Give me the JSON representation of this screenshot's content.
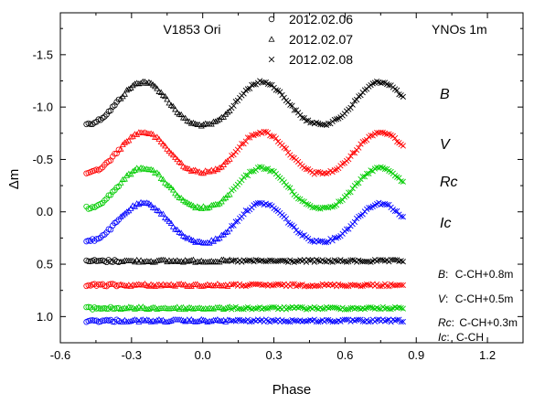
{
  "chart_data": {
    "type": "scatter",
    "star_label": "V1853 Ori",
    "telescope_label": "YNOs 1m",
    "xlabel": "Phase",
    "ylabel": "Δm",
    "xlim": [
      -0.6,
      1.35
    ],
    "ylim": [
      1.25,
      -1.9
    ],
    "y_reversed": true,
    "x_ticks": [
      "-0.6",
      "-0.3",
      "0.0",
      "0.3",
      "0.6",
      "0.9",
      "1.2"
    ],
    "x_tick_values": [
      -0.6,
      -0.3,
      0.0,
      0.3,
      0.6,
      0.9,
      1.2
    ],
    "y_ticks": [
      "-1.5",
      "-1.0",
      "-0.5",
      "0.0",
      "0.5",
      "1.0"
    ],
    "y_tick_values": [
      -1.5,
      -1.0,
      -0.5,
      0.0,
      0.5,
      1.0
    ],
    "legend": [
      {
        "marker": "circle",
        "label": "2012.02.06",
        "phase_range": [
          -0.49,
          -0.35
        ]
      },
      {
        "marker": "triangle",
        "label": "2012.02.07",
        "phase_range": [
          -0.35,
          0.12
        ]
      },
      {
        "marker": "cross",
        "label": "2012.02.08",
        "phase_range": [
          0.12,
          0.85
        ]
      }
    ],
    "light_curves": [
      {
        "band": "B",
        "color": "#000000",
        "max": -1.24,
        "primary_min": -0.83,
        "secondary_min": -0.84,
        "label_dm": -1.03
      },
      {
        "band": "V",
        "color": "#ff0000",
        "max": -0.76,
        "primary_min": -0.38,
        "secondary_min": -0.37,
        "label_dm": -0.6
      },
      {
        "band": "Rc",
        "color": "#00cc00",
        "max": -0.42,
        "primary_min": -0.04,
        "secondary_min": -0.04,
        "label_dm": -0.28
      },
      {
        "band": "Ic",
        "color": "#0000ff",
        "max": -0.08,
        "primary_min": 0.29,
        "secondary_min": 0.28,
        "label_dm": 0.04
      }
    ],
    "comparison_curves": [
      {
        "band": "B",
        "color": "#000000",
        "dm": 0.47,
        "text": "C-CH+0.8m"
      },
      {
        "band": "V",
        "color": "#ff0000",
        "dm": 0.7,
        "text": "C-CH+0.5m"
      },
      {
        "band": "Rc",
        "color": "#00cc00",
        "dm": 0.92,
        "text": "C-CH+0.3m"
      },
      {
        "band": "Ic",
        "color": "#0000ff",
        "dm": 1.04,
        "text": "C-CH"
      }
    ]
  }
}
